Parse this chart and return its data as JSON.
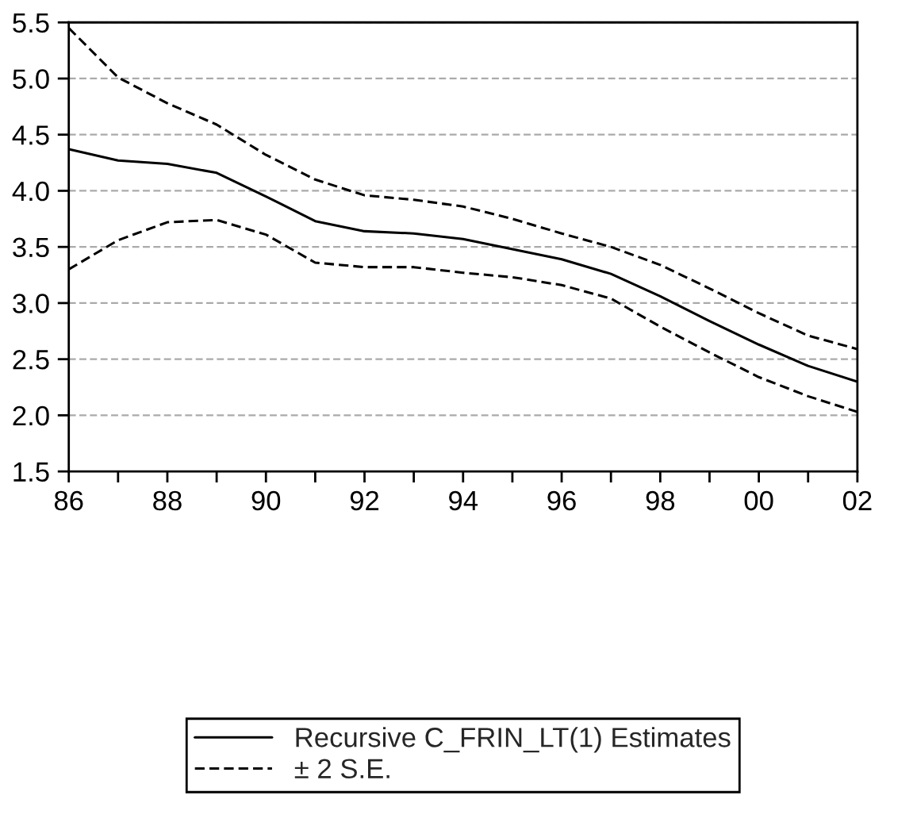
{
  "chart_data": {
    "type": "line",
    "x": [
      1986,
      1987,
      1988,
      1989,
      1990,
      1991,
      1992,
      1993,
      1994,
      1995,
      1996,
      1997,
      1998,
      1999,
      2000,
      2001,
      2002
    ],
    "series": [
      {
        "name": "Recursive C_FRIN_LT(1) Estimates",
        "color": "#000000",
        "line_style": "solid",
        "values": [
          4.37,
          4.27,
          4.24,
          4.16,
          3.95,
          3.73,
          3.64,
          3.62,
          3.57,
          3.48,
          3.39,
          3.26,
          3.06,
          2.84,
          2.63,
          2.44,
          2.3
        ]
      },
      {
        "name": "± 2 S.E.",
        "color": "#000000",
        "line_style": "dashed",
        "values": [
          5.45,
          5.01,
          4.78,
          4.59,
          4.32,
          4.1,
          3.96,
          3.92,
          3.86,
          3.75,
          3.62,
          3.5,
          3.34,
          3.13,
          2.91,
          2.71,
          2.59
        ]
      },
      {
        "color": "#000000",
        "line_style": "dashed",
        "values": [
          3.3,
          3.56,
          3.72,
          3.74,
          3.61,
          3.36,
          3.32,
          3.32,
          3.27,
          3.23,
          3.16,
          3.04,
          2.79,
          2.56,
          2.34,
          2.17,
          2.03
        ]
      }
    ],
    "xlim": [
      1986,
      2002
    ],
    "xticks": [
      {
        "value": 1986,
        "label": "86"
      },
      {
        "value": 1987,
        "label": null
      },
      {
        "value": 1988,
        "label": "88"
      },
      {
        "value": 1989,
        "label": null
      },
      {
        "value": 1990,
        "label": "90"
      },
      {
        "value": 1991,
        "label": null
      },
      {
        "value": 1992,
        "label": "92"
      },
      {
        "value": 1993,
        "label": null
      },
      {
        "value": 1994,
        "label": "94"
      },
      {
        "value": 1995,
        "label": null
      },
      {
        "value": 1996,
        "label": "96"
      },
      {
        "value": 1997,
        "label": null
      },
      {
        "value": 1998,
        "label": "98"
      },
      {
        "value": 1999,
        "label": null
      },
      {
        "value": 2000,
        "label": "00"
      },
      {
        "value": 2001,
        "label": null
      },
      {
        "value": 2002,
        "label": "02"
      }
    ],
    "ylim": [
      1.5,
      5.5
    ],
    "yticks": [
      {
        "value": 1.5,
        "label": "1.5"
      },
      {
        "value": 2.0,
        "label": "2.0"
      },
      {
        "value": 2.5,
        "label": "2.5"
      },
      {
        "value": 3.0,
        "label": "3.0"
      },
      {
        "value": 3.5,
        "label": "3.5"
      },
      {
        "value": 4.0,
        "label": "4.0"
      },
      {
        "value": 4.5,
        "label": "4.5"
      },
      {
        "value": 5.0,
        "label": "5.0"
      },
      {
        "value": 5.5,
        "label": "5.5"
      }
    ],
    "grid": "y",
    "legend": "bottom",
    "marker": "none"
  }
}
